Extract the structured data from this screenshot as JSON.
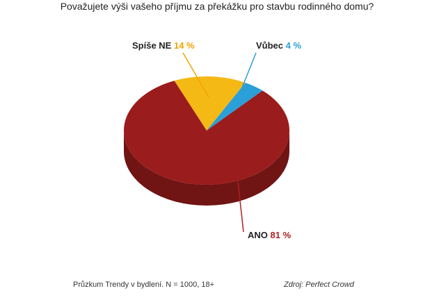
{
  "chart_data": {
    "type": "pie",
    "title": "Považujete výši vašeho příjmu za překážku pro stavbu rodinného domu?",
    "categories": [
      "Spíše NE",
      "Vůbec",
      "ANO"
    ],
    "values": [
      14,
      4,
      81
    ],
    "value_labels": [
      "14 %",
      "4 %",
      "81 %"
    ],
    "colors": [
      "#f5b915",
      "#2a9fd8",
      "#9b1c1c"
    ],
    "footnote": "Průzkum Trendy v bydlení. N = 1000, 18+",
    "source": "Zdroj: Perfect Crowd"
  }
}
